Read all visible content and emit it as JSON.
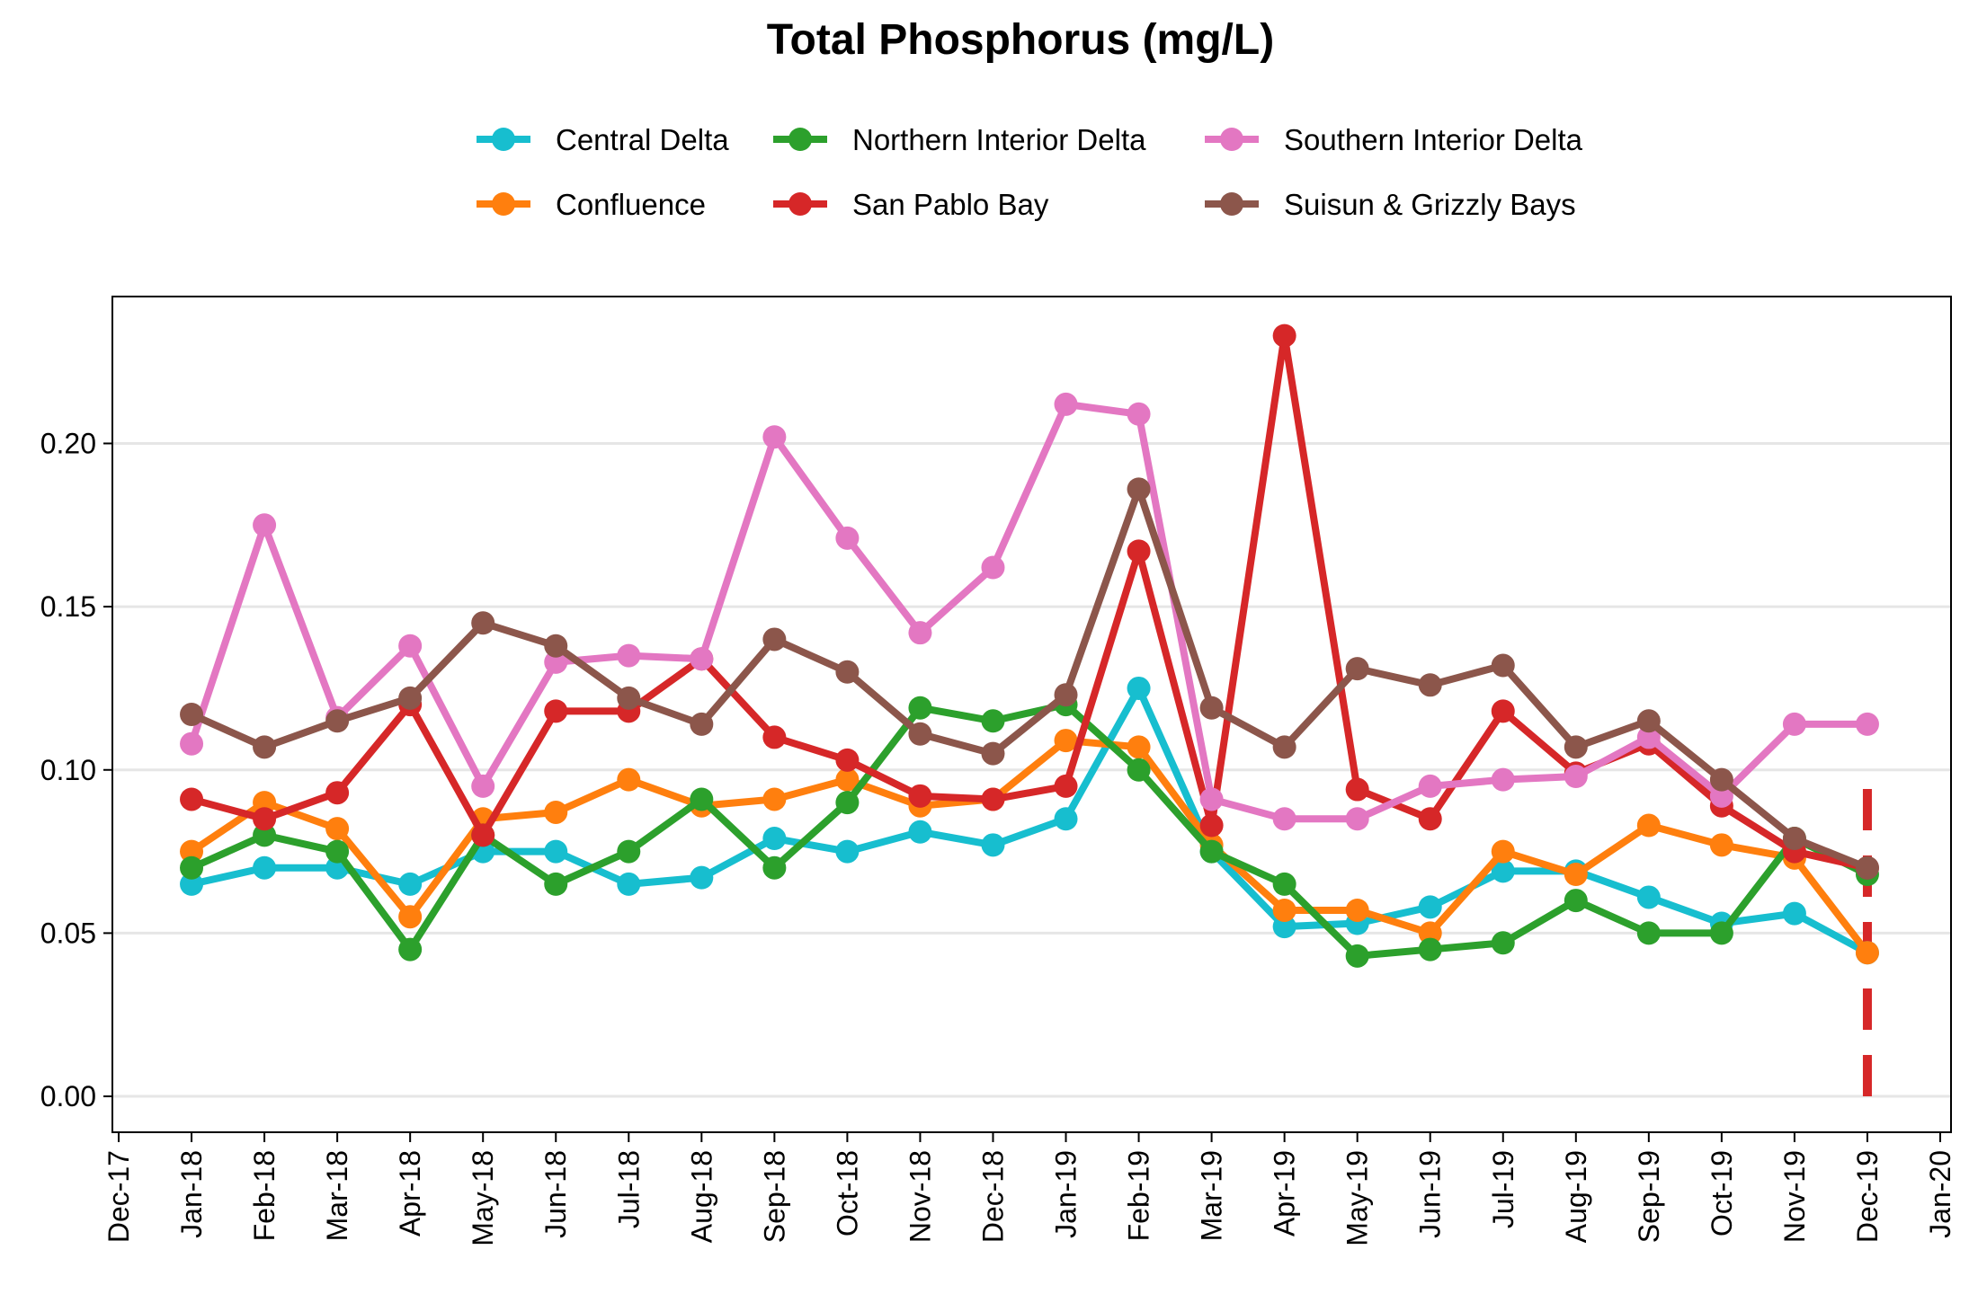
{
  "chart_data": {
    "type": "line",
    "title": "Total Phosphorus (mg/L)",
    "xlabel": "",
    "ylabel": "",
    "x_ticks": [
      "Dec-17",
      "Jan-18",
      "Feb-18",
      "Mar-18",
      "Apr-18",
      "May-18",
      "Jun-18",
      "Jul-18",
      "Aug-18",
      "Sep-18",
      "Oct-18",
      "Nov-18",
      "Dec-18",
      "Jan-19",
      "Feb-19",
      "Mar-19",
      "Apr-19",
      "May-19",
      "Jun-19",
      "Jul-19",
      "Aug-19",
      "Sep-19",
      "Oct-19",
      "Nov-19",
      "Dec-19",
      "Jan-20"
    ],
    "y_ticks": [
      "0.00",
      "0.05",
      "0.10",
      "0.15",
      "0.20"
    ],
    "ylim": [
      -0.011,
      0.245
    ],
    "grid": "horizontal",
    "legend_position": "top",
    "categories": [
      "Jan-18",
      "Feb-18",
      "Mar-18",
      "Apr-18",
      "May-18",
      "Jun-18",
      "Jul-18",
      "Aug-18",
      "Sep-18",
      "Oct-18",
      "Nov-18",
      "Dec-18",
      "Jan-19",
      "Feb-19",
      "Mar-19",
      "Apr-19",
      "May-19",
      "Jun-19",
      "Jul-19",
      "Aug-19",
      "Sep-19",
      "Oct-19",
      "Nov-19",
      "Dec-19"
    ],
    "series": [
      {
        "name": "Central Delta",
        "color": "#17becf",
        "values": [
          0.065,
          0.07,
          0.07,
          0.065,
          0.075,
          0.075,
          0.065,
          0.067,
          0.079,
          0.075,
          0.081,
          0.077,
          0.085,
          0.125,
          0.075,
          0.052,
          0.053,
          0.058,
          0.069,
          0.069,
          0.061,
          0.053,
          0.056,
          0.044
        ]
      },
      {
        "name": "Confluence",
        "color": "#ff7f0e",
        "values": [
          0.075,
          0.09,
          0.082,
          0.055,
          0.085,
          0.087,
          0.097,
          0.089,
          0.091,
          0.097,
          0.089,
          0.091,
          0.109,
          0.107,
          0.077,
          0.057,
          0.057,
          0.05,
          0.075,
          0.068,
          0.083,
          0.077,
          0.073,
          0.044
        ]
      },
      {
        "name": "Northern Interior Delta",
        "color": "#2ca02c",
        "values": [
          0.07,
          0.08,
          0.075,
          0.045,
          0.08,
          0.065,
          0.075,
          0.091,
          0.07,
          0.09,
          0.119,
          0.115,
          0.12,
          0.1,
          0.075,
          0.065,
          0.043,
          0.045,
          0.047,
          0.06,
          0.05,
          0.05,
          0.079,
          0.068
        ]
      },
      {
        "name": "San Pablo Bay",
        "color": "#d62728",
        "values": [
          0.091,
          0.085,
          0.093,
          0.12,
          0.08,
          0.118,
          0.118,
          0.134,
          0.11,
          0.103,
          0.092,
          0.091,
          0.095,
          0.167,
          0.083,
          0.233,
          0.094,
          0.085,
          0.118,
          0.099,
          0.108,
          0.089,
          0.075,
          0.07
        ]
      },
      {
        "name": "Southern Interior Delta",
        "color": "#e377c2",
        "values": [
          0.108,
          0.175,
          0.116,
          0.138,
          0.095,
          0.133,
          0.135,
          0.134,
          0.202,
          0.171,
          0.142,
          0.162,
          0.212,
          0.209,
          0.091,
          0.085,
          0.085,
          0.095,
          0.097,
          0.098,
          0.11,
          0.092,
          0.114,
          0.114
        ]
      },
      {
        "name": "Suisun & Grizzly Bays",
        "color": "#8c564b",
        "values": [
          0.117,
          0.107,
          0.115,
          0.122,
          0.145,
          0.138,
          0.122,
          0.114,
          0.14,
          0.13,
          0.111,
          0.105,
          0.123,
          0.186,
          0.119,
          0.107,
          0.131,
          0.126,
          0.132,
          0.107,
          0.115,
          0.097,
          0.079,
          0.07
        ]
      }
    ],
    "annotation": {
      "type": "vertical-dashed-line",
      "x": "Dec-19",
      "y_from": 0.0,
      "y_to": 0.1,
      "color": "#d62728"
    }
  }
}
